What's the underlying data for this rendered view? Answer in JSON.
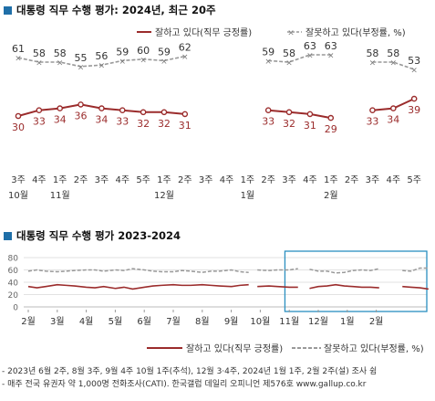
{
  "chart_data": [
    {
      "type": "line",
      "title": "대통령 직무 수행 평가: 2024년, 최근 20주",
      "x": [
        "10월 3주",
        "10월 4주",
        "11월 1주",
        "11월 2주",
        "11월 3주",
        "11월 4주",
        "11월 5주",
        "12월 1주",
        "12월 2주",
        "12월 3주",
        "12월 4주",
        "1월 1주",
        "1월 2주",
        "1월 3주",
        "1월 4주",
        "2월 1주",
        "2월 2주",
        "2월 3주",
        "2월 4주",
        "2월 5주"
      ],
      "tick_labels": [
        {
          "week": "3주",
          "month": "10월"
        },
        {
          "week": "4주",
          "month": ""
        },
        {
          "week": "1주",
          "month": "11월"
        },
        {
          "week": "2주",
          "month": ""
        },
        {
          "week": "3주",
          "month": ""
        },
        {
          "week": "4주",
          "month": ""
        },
        {
          "week": "5주",
          "month": ""
        },
        {
          "week": "1주",
          "month": "12월"
        },
        {
          "week": "2주",
          "month": ""
        },
        {
          "week": "3주",
          "month": ""
        },
        {
          "week": "4주",
          "month": ""
        },
        {
          "week": "1주",
          "month": "1월"
        },
        {
          "week": "2주",
          "month": ""
        },
        {
          "week": "3주",
          "month": ""
        },
        {
          "week": "4주",
          "month": ""
        },
        {
          "week": "1주",
          "month": "2월"
        },
        {
          "week": "2주",
          "month": ""
        },
        {
          "week": "3주",
          "month": ""
        },
        {
          "week": "4주",
          "month": ""
        },
        {
          "week": "5주",
          "month": ""
        }
      ],
      "series": [
        {
          "name": "잘하고 있다(직무 긍정률)",
          "color": "#9b2c2c",
          "style": "solid",
          "values": [
            30,
            33,
            34,
            36,
            34,
            33,
            32,
            32,
            31,
            null,
            null,
            null,
            33,
            32,
            31,
            29,
            null,
            33,
            34,
            39
          ]
        },
        {
          "name": "잘못하고 있다(부정률, %)",
          "color": "#888888",
          "style": "dashed",
          "values": [
            61,
            58,
            58,
            55,
            56,
            59,
            60,
            59,
            62,
            null,
            null,
            null,
            59,
            58,
            63,
            63,
            null,
            58,
            58,
            53
          ]
        }
      ],
      "legend": "top-right"
    },
    {
      "type": "line",
      "title": "대통령 직무 수행 평가 2023-2024",
      "categories": [
        "2월",
        "3월",
        "4월",
        "5월",
        "6월",
        "7월",
        "8월",
        "9월",
        "10월",
        "11월",
        "12월",
        "1월",
        "2월"
      ],
      "ylim": [
        0,
        80
      ],
      "yticks": [
        0,
        20,
        40,
        60,
        80
      ],
      "grid": true,
      "highlight_box": "10월 to end",
      "series": [
        {
          "name": "잘하고 있다(직무 긍정률)",
          "color": "#9b2c2c",
          "style": "solid",
          "segments": [
            [
              [
                0.0,
                33
              ],
              [
                0.3,
                31
              ],
              [
                0.6,
                33
              ],
              [
                1.0,
                36
              ],
              [
                1.3,
                35
              ],
              [
                1.6,
                34
              ],
              [
                2.0,
                32
              ],
              [
                2.3,
                31
              ],
              [
                2.6,
                33
              ],
              [
                3.0,
                30
              ],
              [
                3.3,
                32
              ],
              [
                3.6,
                29
              ],
              [
                4.0,
                32
              ],
              [
                4.3,
                34
              ],
              [
                4.6,
                35
              ],
              [
                5.0,
                36
              ],
              [
                5.3,
                35
              ],
              [
                5.6,
                35
              ],
              [
                6.0,
                36
              ],
              [
                6.3,
                35
              ],
              [
                6.6,
                34
              ],
              [
                7.0,
                33
              ],
              [
                7.3,
                35
              ],
              [
                7.6,
                36
              ]
            ],
            [
              [
                7.9,
                33
              ],
              [
                8.3,
                34
              ],
              [
                8.6,
                33
              ],
              [
                9.0,
                32
              ],
              [
                9.3,
                32
              ]
            ],
            [
              [
                9.7,
                30
              ],
              [
                10.0,
                33
              ],
              [
                10.3,
                34
              ],
              [
                10.6,
                36
              ],
              [
                10.9,
                34
              ],
              [
                11.2,
                33
              ],
              [
                11.5,
                32
              ],
              [
                11.8,
                32
              ],
              [
                12.1,
                31
              ]
            ],
            [
              [
                12.9,
                33
              ],
              [
                13.2,
                32
              ],
              [
                13.5,
                31
              ],
              [
                13.8,
                29
              ]
            ],
            [
              [
                14.5,
                33
              ],
              [
                14.8,
                34
              ],
              [
                15.1,
                39
              ]
            ]
          ]
        },
        {
          "name": "잘못하고 있다(부정률, %)",
          "color": "#888888",
          "style": "dashed",
          "segments": [
            [
              [
                0.0,
                58
              ],
              [
                0.3,
                60
              ],
              [
                0.6,
                58
              ],
              [
                1.0,
                57
              ],
              [
                1.3,
                58
              ],
              [
                1.6,
                59
              ],
              [
                2.0,
                60
              ],
              [
                2.3,
                60
              ],
              [
                2.6,
                58
              ],
              [
                3.0,
                60
              ],
              [
                3.3,
                59
              ],
              [
                3.6,
                62
              ],
              [
                4.0,
                60
              ],
              [
                4.3,
                58
              ],
              [
                4.6,
                57
              ],
              [
                5.0,
                57
              ],
              [
                5.3,
                59
              ],
              [
                5.6,
                58
              ],
              [
                6.0,
                56
              ],
              [
                6.3,
                58
              ],
              [
                6.6,
                58
              ],
              [
                7.0,
                60
              ],
              [
                7.3,
                57
              ],
              [
                7.6,
                56
              ]
            ],
            [
              [
                7.9,
                60
              ],
              [
                8.3,
                59
              ],
              [
                8.6,
                60
              ],
              [
                9.0,
                60
              ],
              [
                9.3,
                62
              ]
            ],
            [
              [
                9.7,
                61
              ],
              [
                10.0,
                58
              ],
              [
                10.3,
                58
              ],
              [
                10.6,
                55
              ],
              [
                10.9,
                56
              ],
              [
                11.2,
                59
              ],
              [
                11.5,
                60
              ],
              [
                11.8,
                59
              ],
              [
                12.1,
                62
              ]
            ],
            [
              [
                12.9,
                59
              ],
              [
                13.2,
                58
              ],
              [
                13.5,
                63
              ],
              [
                13.8,
                63
              ]
            ],
            [
              [
                14.5,
                58
              ],
              [
                14.8,
                58
              ],
              [
                15.1,
                53
              ]
            ]
          ]
        }
      ],
      "legend": "bottom-right"
    }
  ],
  "notes": [
    "- 2023년 6월 2주, 8월 3주, 9월 4주 10월 1주(추석), 12월 3·4주, 2024년 1월 1주, 2월 2주(설) 조사 쉼",
    "- 매주 전국 유권자 약 1,000명 전화조사(CATI). 한국갤럽 데일리 오피니언 제576호 www.gallup.co.kr"
  ]
}
